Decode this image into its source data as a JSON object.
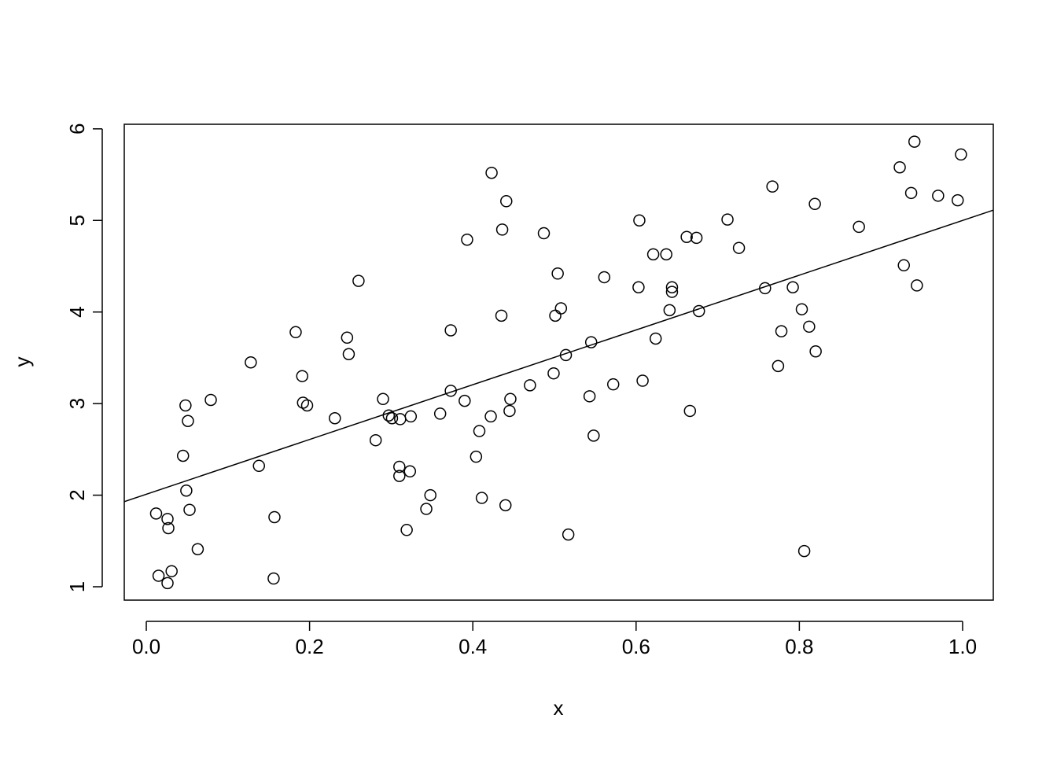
{
  "chart_data": {
    "type": "scatter",
    "x_label": "x",
    "y_label": "y",
    "x": [
      0.012,
      0.015,
      0.026,
      0.026,
      0.027,
      0.031,
      0.045,
      0.048,
      0.049,
      0.051,
      0.053,
      0.063,
      0.079,
      0.128,
      0.138,
      0.156,
      0.157,
      0.183,
      0.191,
      0.192,
      0.197,
      0.231,
      0.246,
      0.248,
      0.26,
      0.281,
      0.29,
      0.297,
      0.301,
      0.31,
      0.31,
      0.311,
      0.319,
      0.323,
      0.324,
      0.343,
      0.348,
      0.36,
      0.373,
      0.373,
      0.39,
      0.393,
      0.404,
      0.408,
      0.411,
      0.422,
      0.423,
      0.435,
      0.436,
      0.44,
      0.441,
      0.445,
      0.446,
      0.47,
      0.487,
      0.499,
      0.501,
      0.504,
      0.508,
      0.514,
      0.517,
      0.543,
      0.545,
      0.548,
      0.561,
      0.572,
      0.603,
      0.604,
      0.608,
      0.621,
      0.624,
      0.637,
      0.641,
      0.644,
      0.644,
      0.662,
      0.666,
      0.674,
      0.677,
      0.712,
      0.726,
      0.758,
      0.767,
      0.774,
      0.778,
      0.792,
      0.803,
      0.806,
      0.812,
      0.819,
      0.82,
      0.873,
      0.923,
      0.928,
      0.937,
      0.941,
      0.944,
      0.97,
      0.994,
      0.998
    ],
    "y": [
      1.8,
      1.12,
      1.74,
      1.04,
      1.64,
      1.17,
      2.43,
      2.98,
      2.05,
      2.81,
      1.84,
      1.41,
      3.04,
      3.45,
      2.32,
      1.09,
      1.76,
      3.78,
      3.3,
      3.01,
      2.98,
      2.84,
      3.72,
      3.54,
      4.34,
      2.6,
      3.05,
      2.87,
      2.84,
      2.31,
      2.21,
      2.83,
      1.62,
      2.26,
      2.86,
      1.85,
      2.0,
      2.89,
      3.8,
      3.14,
      3.03,
      4.79,
      2.42,
      2.7,
      1.97,
      2.86,
      5.52,
      3.96,
      4.9,
      1.89,
      5.21,
      2.92,
      3.05,
      3.2,
      4.86,
      3.33,
      3.96,
      4.42,
      4.04,
      3.53,
      1.57,
      3.08,
      3.67,
      2.65,
      4.38,
      3.21,
      4.27,
      5.0,
      3.25,
      4.63,
      3.71,
      4.63,
      4.02,
      4.27,
      4.22,
      4.82,
      2.92,
      4.81,
      4.01,
      5.01,
      4.7,
      4.26,
      5.37,
      3.41,
      3.79,
      4.27,
      4.03,
      1.39,
      3.84,
      5.18,
      3.57,
      4.93,
      5.58,
      4.51,
      5.3,
      5.86,
      4.29,
      5.27,
      5.22,
      5.72
    ],
    "color": "#000000",
    "regression": {
      "intercept": 2.01,
      "slope": 2.99
    },
    "xlim": [
      -0.027,
      1.0376
    ],
    "ylim": [
      0.854,
      6.05
    ],
    "xticks": [
      {
        "value": 0,
        "label": "0.0"
      },
      0.2,
      0.4,
      0.6,
      0.8,
      {
        "value": 1,
        "label": "1.0"
      }
    ],
    "yticks": [
      1,
      2,
      3,
      4,
      5,
      6
    ]
  }
}
